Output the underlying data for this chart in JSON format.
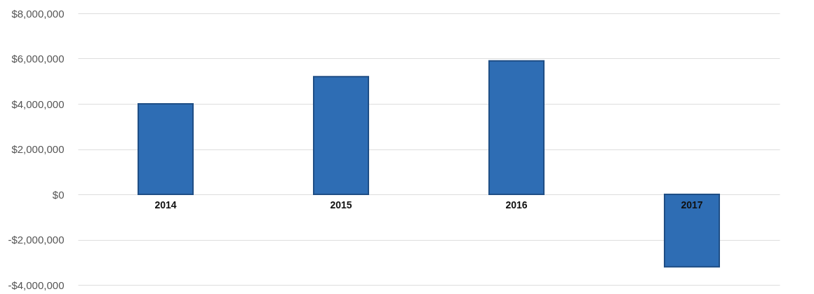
{
  "chart_data": {
    "type": "bar",
    "categories": [
      "2014",
      "2015",
      "2016",
      "2017"
    ],
    "values": [
      4000000,
      5200000,
      5900000,
      -3200000
    ],
    "color": "#2e6db4",
    "ylim": [
      -4000000,
      8000000
    ],
    "yticks": [
      {
        "value": -4000000,
        "label": "-$4,000,000"
      },
      {
        "value": -2000000,
        "label": "-$2,000,000"
      },
      {
        "value": 0,
        "label": "$0"
      },
      {
        "value": 2000000,
        "label": "$2,000,000"
      },
      {
        "value": 4000000,
        "label": "$4,000,000"
      },
      {
        "value": 6000000,
        "label": "$6,000,000"
      },
      {
        "value": 8000000,
        "label": "$8,000,000"
      }
    ],
    "grid": "y"
  }
}
